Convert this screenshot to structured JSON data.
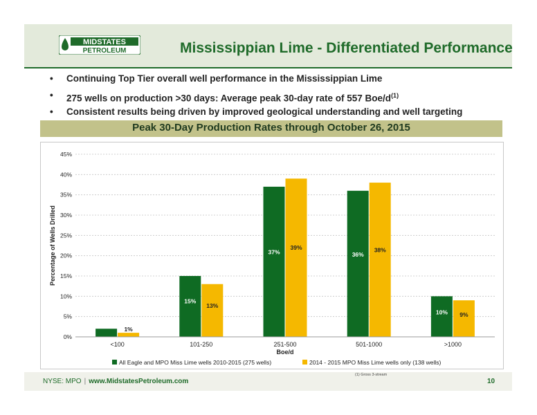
{
  "slide": {
    "title": "Mississippian Lime - Differentiated Performance",
    "logo_top": "MIDSTATES",
    "logo_bottom": "PETROLEUM",
    "bullets": [
      {
        "text": "Continuing Top Tier overall well performance in the Mississippian Lime",
        "sup": ""
      },
      {
        "text": "275 wells on production >30 days: Average peak 30-day rate of 557 Boe/d",
        "sup": "(1)"
      },
      {
        "text": "Consistent results being driven by improved geological understanding and well targeting",
        "sup": ""
      }
    ],
    "bullet_symbol": "•",
    "footer_ticker": "NYSE: MPO",
    "footer_sep": "|",
    "footer_url": "www.MidstatesPetroleum.com",
    "footnote": "(1)     Gross 3-stream",
    "page_number": "10"
  },
  "colors": {
    "brand_green": "#1f6b2a",
    "series1": "#0f6b23",
    "series2": "#f5b800",
    "banner": "#c2c28a"
  },
  "chart_data": {
    "type": "bar",
    "title": "Peak 30-Day Production Rates through October 26, 2015",
    "xlabel": "Boe/d",
    "ylabel": "Percentage of Wells Drilled",
    "categories": [
      "<100",
      "101-250",
      "251-500",
      "501-1000",
      ">1000"
    ],
    "series": [
      {
        "name": "All Eagle and MPO Miss Lime wells 2010-2015 (275 wells)",
        "values": [
          2,
          15,
          37,
          36,
          10
        ],
        "labels": [
          "2%",
          "15%",
          "37%",
          "36%",
          "10%"
        ]
      },
      {
        "name": "2014 - 2015 MPO Miss Lime wells only (138 wells)",
        "values": [
          1,
          13,
          39,
          38,
          9
        ],
        "labels": [
          "1%",
          "13%",
          "39%",
          "38%",
          "9%"
        ]
      }
    ],
    "yticks": [
      "0%",
      "5%",
      "10%",
      "15%",
      "20%",
      "25%",
      "30%",
      "35%",
      "40%",
      "45%"
    ],
    "ylim": [
      0,
      45
    ],
    "grid": true,
    "legend_position": "bottom"
  }
}
